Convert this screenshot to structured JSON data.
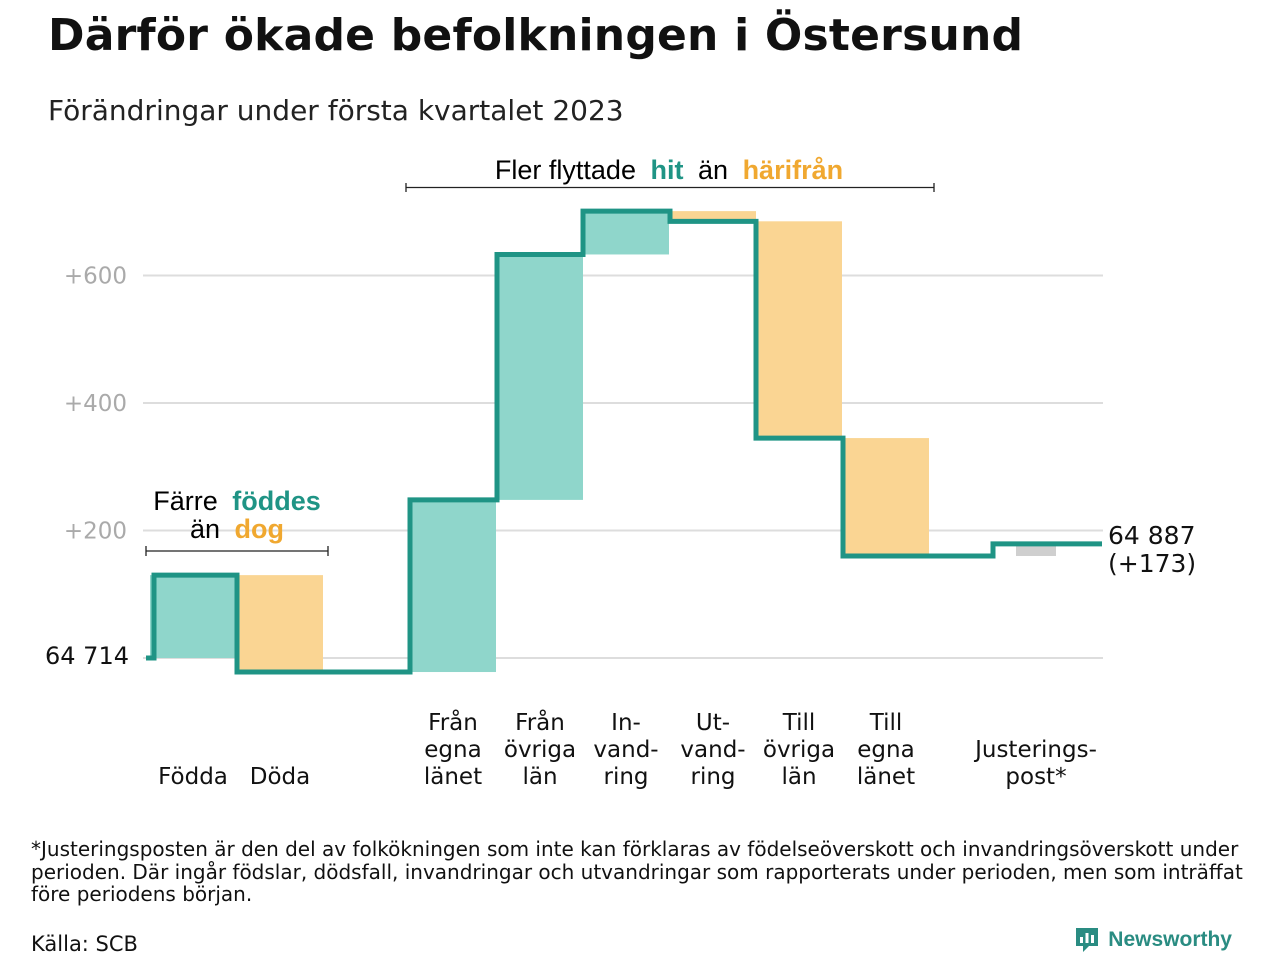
{
  "title": "Därför ökade befolkningen i Östersund",
  "subtitle": "Förändringar under första kvartalet 2023",
  "chart_data": {
    "type": "waterfall",
    "start_value": 64714,
    "start_label": "64 714",
    "end_label": "64 887",
    "end_change_label": "(+173)",
    "y_ticks": [
      {
        "value": 200,
        "label": "+200"
      },
      {
        "value": 400,
        "label": "+400"
      },
      {
        "value": 600,
        "label": "+600"
      }
    ],
    "ylim": [
      -30,
      700
    ],
    "grid": true,
    "steps": [
      {
        "label_lines": [
          "Födda"
        ],
        "delta": 130,
        "kind": "in"
      },
      {
        "label_lines": [
          "Döda"
        ],
        "delta": -152,
        "kind": "out"
      },
      {
        "label_lines": [
          "Från",
          "egna",
          "länet"
        ],
        "delta": 270,
        "kind": "in"
      },
      {
        "label_lines": [
          "Från",
          "övriga",
          "län"
        ],
        "delta": 385,
        "kind": "in"
      },
      {
        "label_lines": [
          "In-",
          "vand-",
          "ring"
        ],
        "delta": 68,
        "kind": "in"
      },
      {
        "label_lines": [
          "Ut-",
          "vand-",
          "ring"
        ],
        "delta": -16,
        "kind": "out"
      },
      {
        "label_lines": [
          "Till",
          "övriga",
          "län"
        ],
        "delta": -340,
        "kind": "out"
      },
      {
        "label_lines": [
          "Till",
          "egna",
          "länet"
        ],
        "delta": -185,
        "kind": "out"
      },
      {
        "label_lines": [
          "Justerings-",
          "post*"
        ],
        "delta": 19,
        "kind": "adjust"
      }
    ],
    "annotations": {
      "birth_death": {
        "line1": "Färre",
        "word_in": "föddes",
        "line2": "än",
        "word_out": "dog"
      },
      "migration": {
        "prefix": "Fler flyttade",
        "word_in": "hit",
        "middle": "än",
        "word_out": "härifrån"
      }
    },
    "colors": {
      "in": "#8fd6cb",
      "out": "#fad593",
      "adjust": "#cfcfcf",
      "line": "#1f9485",
      "emph_in": "#1f9485",
      "emph_out": "#f0a830",
      "grid": "#dddddd",
      "tick": "#aaaaaa"
    }
  },
  "footnote": "*Justeringsposten är den del av folkökningen som inte kan förklaras av födelseöverskott och invandringsöverskott under perioden. Där ingår födslar, dödsfall, invandringar och utvandringar som rapporterats under perioden, men som inträffat före periodens början.",
  "source": "Källa: SCB",
  "brand": {
    "name": "Newsworthy",
    "icon": "newsworthy-logo-icon"
  }
}
